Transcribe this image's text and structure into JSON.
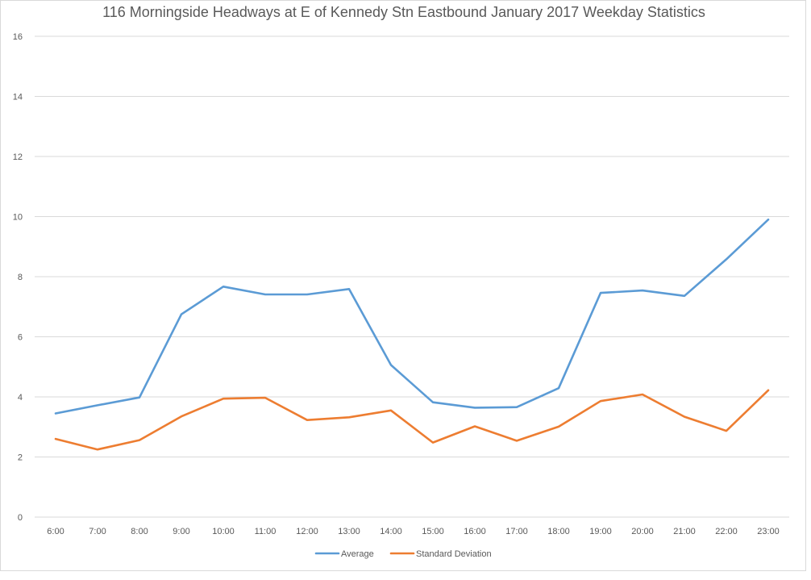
{
  "chart_data": {
    "type": "line",
    "title": "116 Morningside Headways at E of Kennedy Stn Eastbound January 2017 Weekday Statistics",
    "xlabel": "",
    "ylabel": "",
    "ylim": [
      0,
      16
    ],
    "yticks": [
      "0",
      "2",
      "4",
      "6",
      "8",
      "10",
      "12",
      "14",
      "16"
    ],
    "grid": true,
    "legend_position": "bottom",
    "categories": [
      "6:00",
      "7:00",
      "8:00",
      "9:00",
      "10:00",
      "11:00",
      "12:00",
      "13:00",
      "14:00",
      "15:00",
      "16:00",
      "17:00",
      "18:00",
      "19:00",
      "20:00",
      "21:00",
      "22:00",
      "23:00"
    ],
    "series": [
      {
        "name": "Average",
        "color": "#5b9bd5",
        "values": [
          3.45,
          3.72,
          3.98,
          6.75,
          7.67,
          7.41,
          7.41,
          7.59,
          5.06,
          3.82,
          3.64,
          3.66,
          4.29,
          7.46,
          7.54,
          7.36,
          8.58,
          9.9
        ]
      },
      {
        "name": "Standard Deviation",
        "color": "#ed7d31",
        "values": [
          2.6,
          2.25,
          2.56,
          3.35,
          3.94,
          3.97,
          3.23,
          3.32,
          3.55,
          2.48,
          3.02,
          2.54,
          3.01,
          3.86,
          4.08,
          3.34,
          2.87,
          4.22
        ]
      }
    ]
  }
}
